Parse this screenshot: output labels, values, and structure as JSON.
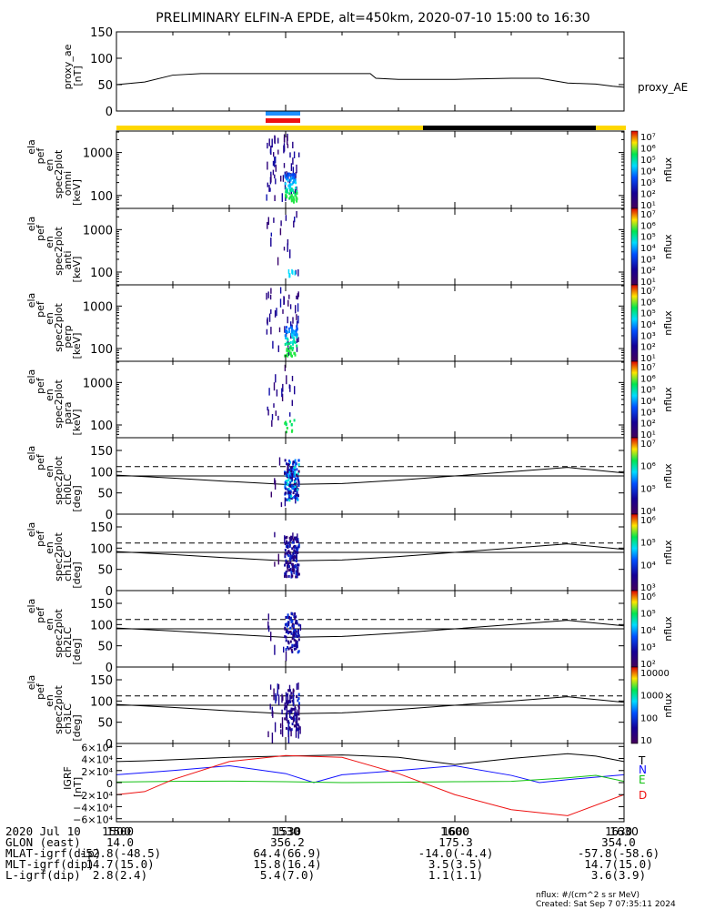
{
  "title": "PRELIMINARY ELFIN-A EPDE, alt=450km, 2020-07-10 15:00 to 16:30",
  "time_ticks": [
    "1500",
    "1530",
    "1600",
    "1630"
  ],
  "colors": {
    "yellow_bar": "#ffd700",
    "black_bar": "#000000",
    "blue_marker": "#1e90ff",
    "red_marker": "#ee1111",
    "grf_T": "#000000",
    "grf_N": "#1010ff",
    "grf_E": "#10c010",
    "grf_D": "#ee1111"
  },
  "colorbars": [
    {
      "label": "nflux",
      "ticks": [
        "10⁷",
        "10⁶",
        "10⁵",
        "10⁴",
        "10³",
        "10²",
        "10¹"
      ]
    },
    {
      "label": "nflux",
      "ticks": [
        "10⁷",
        "10⁶",
        "10⁵",
        "10⁴",
        "10³",
        "10²",
        "10¹"
      ]
    },
    {
      "label": "nflux",
      "ticks": [
        "10⁷",
        "10⁶",
        "10⁵",
        "10⁴",
        "10³",
        "10²",
        "10¹"
      ]
    },
    {
      "label": "nflux",
      "ticks": [
        "10⁷",
        "10⁶",
        "10⁵",
        "10⁴",
        "10³",
        "10²",
        "10¹"
      ]
    },
    {
      "label": "nflux",
      "ticks": [
        "10⁷",
        "10⁶",
        "10⁵",
        "10⁴"
      ]
    },
    {
      "label": "nflux",
      "ticks": [
        "10⁶",
        "10⁵",
        "10⁴",
        "10³"
      ]
    },
    {
      "label": "nflux",
      "ticks": [
        "10⁶",
        "10⁵",
        "10⁴",
        "10³",
        "10²"
      ]
    },
    {
      "label": "nflux",
      "ticks": [
        "10000",
        "1000",
        "100",
        "10"
      ]
    }
  ],
  "chart_data": [
    {
      "type": "line",
      "ylabel": [
        "proxy_ae",
        "[nT]"
      ],
      "ylim": [
        0,
        150
      ],
      "yticks": [
        "0",
        "50",
        "100",
        "150"
      ],
      "series": [
        {
          "name": "proxy_AE",
          "x": [
            0,
            2,
            5,
            10,
            15,
            20,
            30,
            45,
            46,
            50,
            60,
            70,
            75,
            80,
            85,
            88,
            90
          ],
          "y": [
            50,
            52,
            55,
            68,
            71,
            71,
            71,
            71,
            62,
            60,
            60,
            62,
            62,
            53,
            51,
            47,
            45
          ]
        }
      ]
    },
    {
      "type": "heatmap",
      "ylabel": [
        "ela",
        "pef",
        "en",
        "spec2plot",
        "omni",
        "[keV]"
      ],
      "yscale": "log",
      "yticks": [
        "100",
        "1000"
      ]
    },
    {
      "type": "heatmap",
      "ylabel": [
        "ela",
        "pef",
        "en",
        "spec2plot",
        "anti",
        "[keV]"
      ],
      "yscale": "log",
      "yticks": [
        "100",
        "1000"
      ]
    },
    {
      "type": "heatmap",
      "ylabel": [
        "ela",
        "pef",
        "en",
        "spec2plot",
        "perp",
        "[keV]"
      ],
      "yscale": "log",
      "yticks": [
        "100",
        "1000"
      ]
    },
    {
      "type": "heatmap",
      "ylabel": [
        "ela",
        "pef",
        "en",
        "spec2plot",
        "para",
        "[keV]"
      ],
      "yscale": "log",
      "yticks": [
        "100",
        "1000"
      ]
    },
    {
      "type": "heatmap",
      "ylabel": [
        "ela",
        "pef",
        "en",
        "spec2plot",
        "ch0LC",
        "[deg]"
      ],
      "ylim": [
        0,
        180
      ],
      "yticks": [
        "0",
        "50",
        "100",
        "150"
      ]
    },
    {
      "type": "heatmap",
      "ylabel": [
        "ela",
        "pef",
        "en",
        "spec2plot",
        "ch1LC",
        "[deg]"
      ],
      "ylim": [
        0,
        180
      ],
      "yticks": [
        "0",
        "50",
        "100",
        "150"
      ]
    },
    {
      "type": "heatmap",
      "ylabel": [
        "ela",
        "pef",
        "en",
        "spec2plot",
        "ch2LC",
        "[deg]"
      ],
      "ylim": [
        0,
        180
      ],
      "yticks": [
        "0",
        "50",
        "100",
        "150"
      ]
    },
    {
      "type": "heatmap",
      "ylabel": [
        "ela",
        "pef",
        "en",
        "spec2plot",
        "ch3LC",
        "[deg]"
      ],
      "ylim": [
        0,
        180
      ],
      "yticks": [
        "0",
        "50",
        "100",
        "150"
      ]
    },
    {
      "type": "line",
      "ylabel": [
        "IGRF",
        "[nT]"
      ],
      "ylim": [
        -65000,
        65000
      ],
      "yticks": [
        "6×10⁴",
        "4×10⁴",
        "2×10⁴",
        "0",
        "−2×10⁴",
        "−4×10⁴",
        "−6×10⁴"
      ],
      "series": [
        {
          "name": "T",
          "x": [
            0,
            5,
            10,
            20,
            30,
            40,
            50,
            60,
            70,
            80,
            85,
            90
          ],
          "y": [
            35000,
            36000,
            38000,
            42000,
            44000,
            46000,
            42000,
            30000,
            40000,
            48000,
            44000,
            35000
          ]
        },
        {
          "name": "N",
          "x": [
            0,
            10,
            20,
            30,
            35,
            40,
            50,
            60,
            70,
            75,
            80,
            90
          ],
          "y": [
            13000,
            20000,
            28000,
            15000,
            0,
            13000,
            20000,
            28000,
            12000,
            0,
            5000,
            13000
          ]
        },
        {
          "name": "E",
          "x": [
            0,
            10,
            20,
            30,
            40,
            50,
            60,
            70,
            80,
            85,
            90
          ],
          "y": [
            1000,
            2000,
            2500,
            1500,
            0,
            500,
            1500,
            2000,
            8000,
            12000,
            2000
          ]
        },
        {
          "name": "D",
          "x": [
            0,
            5,
            10,
            20,
            30,
            40,
            50,
            60,
            70,
            80,
            90
          ],
          "y": [
            -20000,
            -15000,
            5000,
            35000,
            45000,
            42000,
            15000,
            -20000,
            -45000,
            -55000,
            -20000
          ]
        }
      ]
    }
  ],
  "table": {
    "rows": [
      {
        "label": "2020 Jul 10",
        "values": [
          "1500",
          "1530",
          "1600",
          "1630"
        ]
      },
      {
        "label": "GLON (east)",
        "values": [
          "14.0",
          "356.2",
          "175.3",
          "354.0"
        ]
      },
      {
        "label": "MLAT-igrf(dip)",
        "values": [
          "-52.8(-48.5)",
          "64.4(66.9)",
          "-14.0(-4.4)",
          "-57.8(-58.6)"
        ]
      },
      {
        "label": "MLT-igrf(dip)",
        "values": [
          "14.7(15.0)",
          "15.8(16.4)",
          "3.5(3.5)",
          "14.7(15.0)"
        ]
      },
      {
        "label": "L-igrf(dip)",
        "values": [
          "2.8(2.4)",
          "5.4(7.0)",
          "1.1(1.1)",
          "3.6(3.9)"
        ]
      }
    ]
  },
  "footer": {
    "units": "nflux: #/(cm^2 s sr MeV)",
    "created": "Created: Sat Sep  7 07:35:11 2024"
  }
}
